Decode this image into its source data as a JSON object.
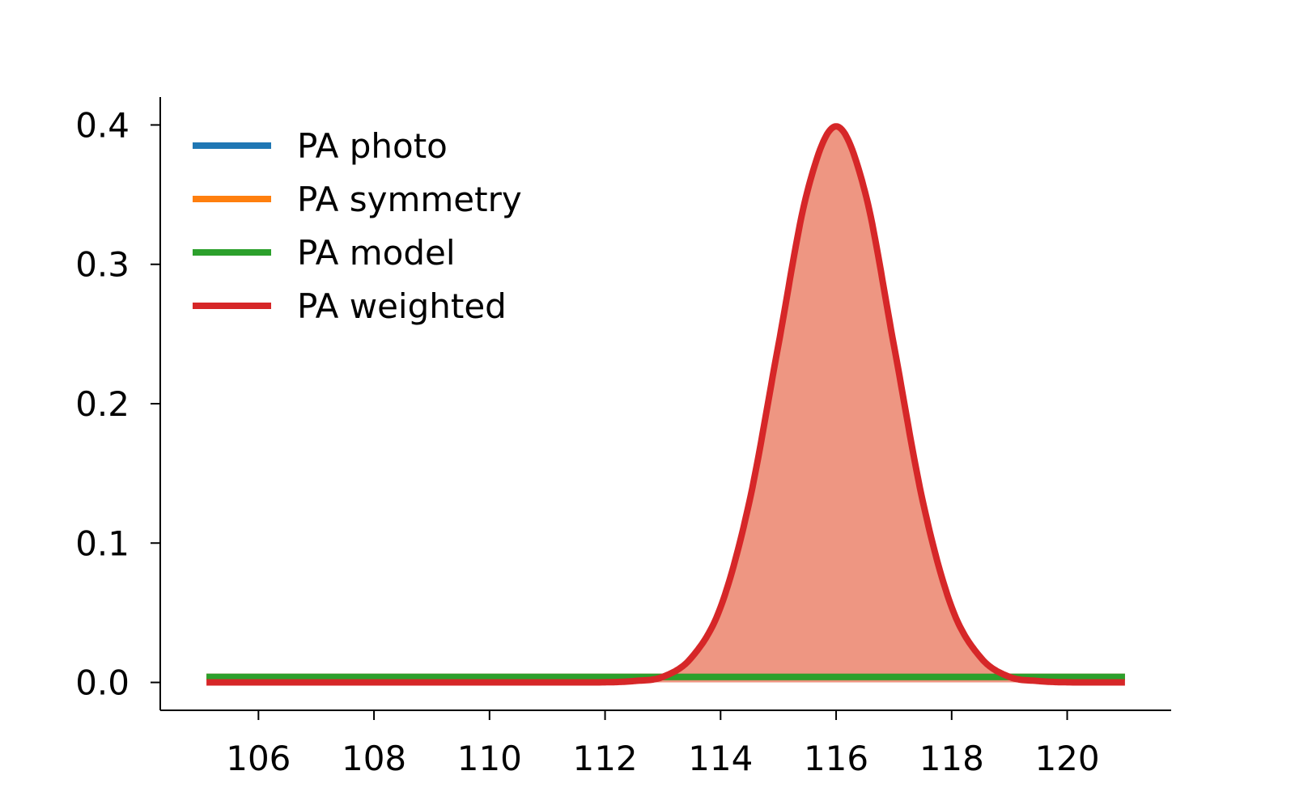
{
  "chart_data": {
    "type": "line",
    "title": "",
    "xlabel": "",
    "ylabel": "",
    "xlim": [
      104.3,
      121.8
    ],
    "ylim": [
      -0.02,
      0.42
    ],
    "xticks": [
      106,
      108,
      110,
      112,
      114,
      116,
      118,
      120
    ],
    "yticks": [
      0.0,
      0.1,
      0.2,
      0.3,
      0.4
    ],
    "ytick_labels": [
      "0.0",
      "0.1",
      "0.2",
      "0.3",
      "0.4"
    ],
    "grid": false,
    "legend_position": "top-left",
    "series": [
      {
        "name": "PA photo",
        "color": "#1f77b4",
        "x": [
          105.1,
          121.0
        ],
        "y": [
          0.004,
          0.004
        ]
      },
      {
        "name": "PA symmetry",
        "color": "#ff7f0e",
        "x": [
          105.1,
          121.0
        ],
        "y": [
          0.004,
          0.004
        ]
      },
      {
        "name": "PA model",
        "color": "#2ca02c",
        "x": [
          105.1,
          121.0
        ],
        "y": [
          0.004,
          0.004
        ]
      },
      {
        "name": "PA weighted",
        "color": "#d62728",
        "fill_color": "#ee9682",
        "filled": true,
        "x": [
          105.1,
          111.0,
          112.0,
          112.5,
          113.0,
          113.5,
          114.0,
          114.5,
          115.0,
          115.5,
          116.0,
          116.5,
          117.0,
          117.5,
          118.0,
          118.5,
          119.0,
          119.5,
          120.0,
          121.0
        ],
        "y": [
          0.0,
          0.0,
          0.0001,
          0.001,
          0.004,
          0.018,
          0.054,
          0.13,
          0.242,
          0.352,
          0.399,
          0.352,
          0.242,
          0.13,
          0.054,
          0.018,
          0.004,
          0.001,
          0.0001,
          0.0
        ]
      }
    ]
  }
}
